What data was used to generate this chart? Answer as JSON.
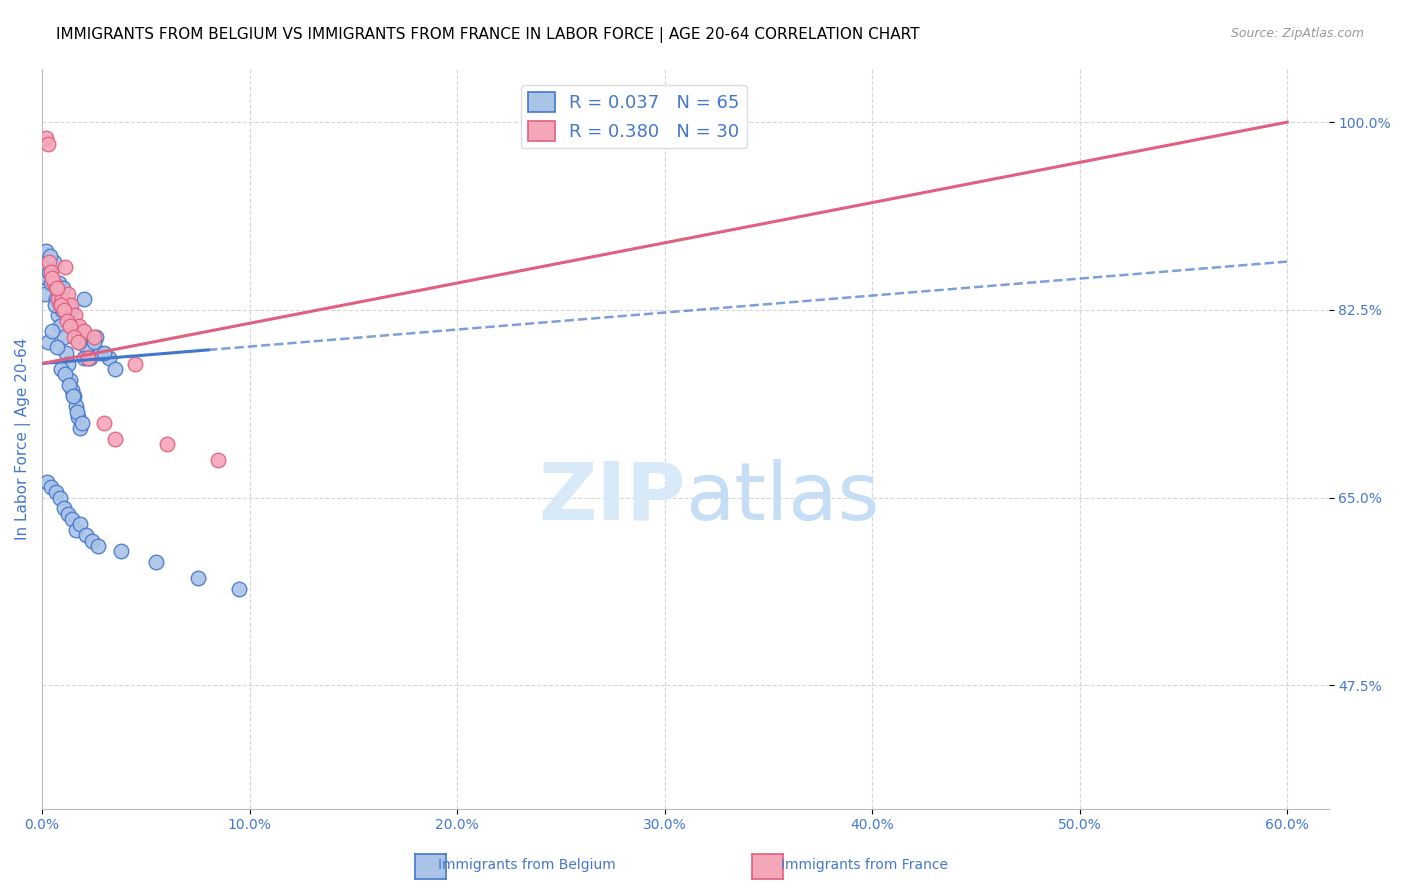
{
  "title": "IMMIGRANTS FROM BELGIUM VS IMMIGRANTS FROM FRANCE IN LABOR FORCE | AGE 20-64 CORRELATION CHART",
  "source": "Source: ZipAtlas.com",
  "ylabel": "In Labor Force | Age 20-64",
  "x_tick_labels": [
    "0.0%",
    "10.0%",
    "20.0%",
    "30.0%",
    "40.0%",
    "50.0%",
    "60.0%"
  ],
  "x_tick_values": [
    0.0,
    10.0,
    20.0,
    30.0,
    40.0,
    50.0,
    60.0
  ],
  "y_tick_labels": [
    "47.5%",
    "65.0%",
    "82.5%",
    "100.0%"
  ],
  "y_tick_values": [
    47.5,
    65.0,
    82.5,
    100.0
  ],
  "xlim": [
    0.0,
    62.0
  ],
  "ylim": [
    36.0,
    105.0
  ],
  "color_belgium": "#aac4e8",
  "color_france": "#f4a7b9",
  "color_belgium_line": "#4477cc",
  "color_france_line": "#e06080",
  "color_axis_labels": "#4477cc",
  "watermark_color": "#ddeeff",
  "belgium_x": [
    0.15,
    0.25,
    0.35,
    0.45,
    0.55,
    0.65,
    0.75,
    0.85,
    0.95,
    1.05,
    1.15,
    1.25,
    1.35,
    1.45,
    1.55,
    1.65,
    1.75,
    1.85,
    1.95,
    2.1,
    2.3,
    2.6,
    2.8,
    3.2,
    0.2,
    0.4,
    0.6,
    0.8,
    1.0,
    1.2,
    1.4,
    1.6,
    1.8,
    2.0,
    0.3,
    0.5,
    0.7,
    0.9,
    1.1,
    1.3,
    1.5,
    1.7,
    1.9,
    2.2,
    2.5,
    3.0,
    3.5,
    0.25,
    0.45,
    0.65,
    0.85,
    1.05,
    1.25,
    1.45,
    1.65,
    1.85,
    2.1,
    2.4,
    2.7,
    3.8,
    5.5,
    7.5,
    9.5,
    2.0,
    1.3
  ],
  "belgium_y": [
    84.0,
    85.5,
    86.0,
    85.0,
    87.0,
    83.5,
    82.0,
    81.0,
    82.5,
    80.0,
    78.5,
    77.5,
    76.0,
    75.0,
    74.5,
    73.5,
    72.5,
    71.5,
    80.5,
    79.0,
    78.0,
    80.0,
    78.5,
    78.0,
    88.0,
    87.5,
    83.0,
    85.0,
    84.5,
    83.0,
    82.5,
    81.0,
    79.5,
    78.0,
    79.5,
    80.5,
    79.0,
    77.0,
    76.5,
    75.5,
    74.5,
    73.0,
    72.0,
    78.0,
    79.5,
    78.5,
    77.0,
    66.5,
    66.0,
    65.5,
    65.0,
    64.0,
    63.5,
    63.0,
    62.0,
    62.5,
    61.5,
    61.0,
    60.5,
    60.0,
    59.0,
    57.5,
    56.5,
    83.5,
    83.0
  ],
  "france_x": [
    0.2,
    0.3,
    0.35,
    0.45,
    0.55,
    0.65,
    0.75,
    0.85,
    0.95,
    1.1,
    1.25,
    1.4,
    1.6,
    1.8,
    2.0,
    2.5,
    3.0,
    3.5,
    0.5,
    0.7,
    0.9,
    1.05,
    1.2,
    1.35,
    1.55,
    1.75,
    2.2,
    4.5,
    6.0,
    8.5
  ],
  "france_y": [
    98.5,
    98.0,
    87.0,
    86.0,
    85.0,
    84.5,
    83.5,
    83.0,
    83.5,
    86.5,
    84.0,
    83.0,
    82.0,
    81.0,
    80.5,
    80.0,
    72.0,
    70.5,
    85.5,
    84.5,
    83.0,
    82.5,
    81.5,
    81.0,
    80.0,
    79.5,
    78.0,
    77.5,
    70.0,
    68.5
  ],
  "bel_trend_x0": 0.0,
  "bel_trend_y0": 77.5,
  "bel_trend_x1": 60.0,
  "bel_trend_y1": 87.0,
  "bel_solid_end_x": 8.0,
  "fra_trend_x0": 0.0,
  "fra_trend_y0": 77.5,
  "fra_trend_x1": 60.0,
  "fra_trend_y1": 100.0,
  "title_fontsize": 11,
  "source_fontsize": 9,
  "axis_label_fontsize": 11,
  "tick_fontsize": 10,
  "legend_fontsize": 13,
  "marker_size": 110
}
